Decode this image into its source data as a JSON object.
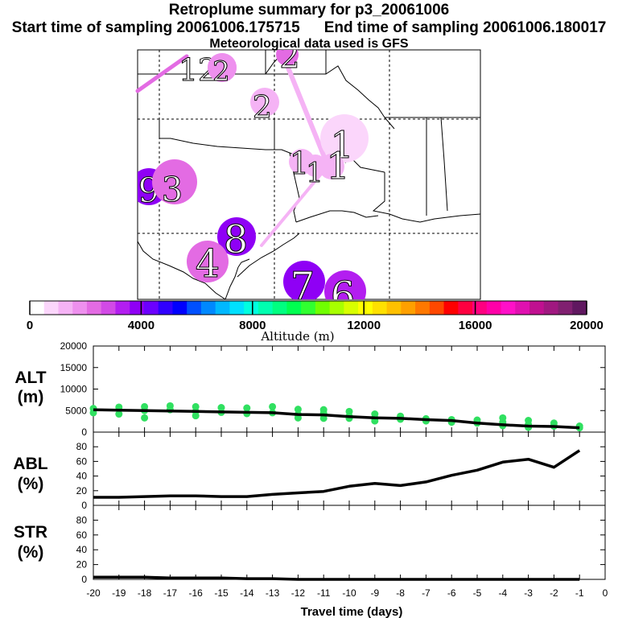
{
  "header": {
    "title": "Retroplume summary for p3_20061006",
    "start_label": "Start time of sampling 20061006.175715",
    "end_label": "End time of sampling 20061006.180017",
    "met_label": "Meteorological data used is GFS"
  },
  "colorbar": {
    "ticks": [
      "0",
      "4000",
      "8000",
      "12000",
      "16000",
      "20000"
    ],
    "label": "Altitude (m)",
    "colors": [
      "#ffffff",
      "#fbd6fb",
      "#f5b3f5",
      "#ee90ee",
      "#e36be3",
      "#d24ae6",
      "#b31ef0",
      "#8f00f5",
      "#6b00ff",
      "#3000ff",
      "#0000ff",
      "#0050ff",
      "#0088ff",
      "#00b8ff",
      "#00e0ff",
      "#00ffe0",
      "#00ffb0",
      "#00ff80",
      "#00ff50",
      "#30ff30",
      "#70ff00",
      "#a8ff00",
      "#d8ff00",
      "#ffff00",
      "#ffe000",
      "#ffc000",
      "#ffa000",
      "#ff7800",
      "#ff4800",
      "#ff0000",
      "#ff0040",
      "#ff0080",
      "#ff00a8",
      "#ff10c8",
      "#e010b0",
      "#c01090",
      "#a01880",
      "#802070",
      "#601860"
    ]
  },
  "map_labels": [
    {
      "text": "12",
      "color": "#ee90ee"
    },
    {
      "text": "2",
      "color": "#ee90ee"
    },
    {
      "text": "2",
      "color": "#f5b3f5"
    },
    {
      "text": "1",
      "color": "#fbd6fb"
    },
    {
      "text": "1",
      "color": "#f5b3f5"
    },
    {
      "text": "1",
      "color": "#f5b3f5"
    },
    {
      "text": "1",
      "color": "#f5b3f5"
    },
    {
      "text": "9",
      "color": "#8f00f5"
    },
    {
      "text": "3",
      "color": "#e36be3"
    },
    {
      "text": "8",
      "color": "#8f00f5"
    },
    {
      "text": "4",
      "color": "#e36be3"
    },
    {
      "text": "7",
      "color": "#8f00f5"
    },
    {
      "text": "6",
      "color": "#b31ef0"
    }
  ],
  "chart_data": [
    {
      "type": "line",
      "panel": "ALT",
      "ylabel": "ALT\n(m)",
      "xlabel": "Travel time (days)",
      "xlim": [
        -20,
        0
      ],
      "ylim": [
        0,
        20000
      ],
      "yticks": [
        0,
        5000,
        10000,
        15000,
        20000
      ],
      "xticks": [
        -20,
        -19,
        -18,
        -17,
        -16,
        -15,
        -14,
        -13,
        -12,
        -11,
        -10,
        -9,
        -8,
        -7,
        -6,
        -5,
        -4,
        -3,
        -2,
        -1,
        0
      ],
      "series": [
        {
          "values_x": [
            -20,
            -19,
            -18,
            -17,
            -16,
            -15,
            -14,
            -13,
            -12,
            -11,
            -10,
            -9,
            -8,
            -7,
            -6,
            -5,
            -4,
            -3,
            -2,
            -1
          ],
          "values_y": [
            5200,
            5100,
            5000,
            4900,
            4800,
            4700,
            4600,
            4500,
            4100,
            4000,
            3600,
            3300,
            3200,
            2900,
            2700,
            2100,
            1700,
            1400,
            1300,
            1000
          ]
        }
      ],
      "scatter": {
        "color": "#30e060",
        "points": [
          [
            -20,
            5500
          ],
          [
            -20,
            4500
          ],
          [
            -19,
            5800
          ],
          [
            -19,
            4200
          ],
          [
            -18,
            5900
          ],
          [
            -18,
            5000
          ],
          [
            -18,
            3300
          ],
          [
            -17,
            6100
          ],
          [
            -17,
            5200
          ],
          [
            -16,
            5900
          ],
          [
            -16,
            4800
          ],
          [
            -16,
            3800
          ],
          [
            -15,
            5700
          ],
          [
            -15,
            4600
          ],
          [
            -14,
            5600
          ],
          [
            -14,
            4300
          ],
          [
            -13,
            5900
          ],
          [
            -13,
            4500
          ],
          [
            -12,
            5300
          ],
          [
            -12,
            4100
          ],
          [
            -12,
            3300
          ],
          [
            -11,
            5200
          ],
          [
            -11,
            4400
          ],
          [
            -11,
            3200
          ],
          [
            -10,
            4800
          ],
          [
            -10,
            3700
          ],
          [
            -10,
            3200
          ],
          [
            -9,
            4200
          ],
          [
            -9,
            3300
          ],
          [
            -9,
            2600
          ],
          [
            -8,
            3700
          ],
          [
            -8,
            3000
          ],
          [
            -7,
            3100
          ],
          [
            -7,
            2600
          ],
          [
            -6,
            2900
          ],
          [
            -6,
            2300
          ],
          [
            -5,
            2800
          ],
          [
            -5,
            2100
          ],
          [
            -4,
            3300
          ],
          [
            -4,
            2300
          ],
          [
            -4,
            1500
          ],
          [
            -3,
            2700
          ],
          [
            -3,
            1800
          ],
          [
            -3,
            1100
          ],
          [
            -2,
            2100
          ],
          [
            -2,
            1400
          ],
          [
            -1,
            1400
          ],
          [
            -1,
            1000
          ]
        ]
      }
    },
    {
      "type": "line",
      "panel": "ABL",
      "ylabel": "ABL\n(%)",
      "xlim": [
        -20,
        0
      ],
      "ylim": [
        0,
        100
      ],
      "yticks": [
        0,
        20,
        40,
        60,
        80
      ],
      "series": [
        {
          "values_x": [
            -20,
            -19,
            -18,
            -17,
            -16,
            -15,
            -14,
            -13,
            -12,
            -11,
            -10,
            -9,
            -8,
            -7,
            -6,
            -5,
            -4,
            -3,
            -2,
            -1
          ],
          "values_y": [
            11,
            11,
            12,
            13,
            13,
            12,
            12,
            15,
            17,
            19,
            26,
            30,
            27,
            32,
            41,
            48,
            59,
            63,
            52,
            75
          ]
        }
      ]
    },
    {
      "type": "line",
      "panel": "STR",
      "ylabel": "STR\n(%)",
      "xlim": [
        -20,
        0
      ],
      "ylim": [
        0,
        100
      ],
      "yticks": [
        0,
        20,
        40,
        60,
        80
      ],
      "series": [
        {
          "values_x": [
            -20,
            -19,
            -18,
            -17,
            -16,
            -15,
            -14,
            -13,
            -12,
            -11,
            -10,
            -9,
            -8,
            -7,
            -6,
            -5,
            -4,
            -3,
            -2,
            -1
          ],
          "values_y": [
            3,
            3,
            3,
            2,
            2,
            2,
            1,
            1,
            0,
            0,
            0,
            0,
            0,
            0,
            0,
            0,
            0,
            0,
            0,
            0
          ]
        }
      ]
    }
  ]
}
